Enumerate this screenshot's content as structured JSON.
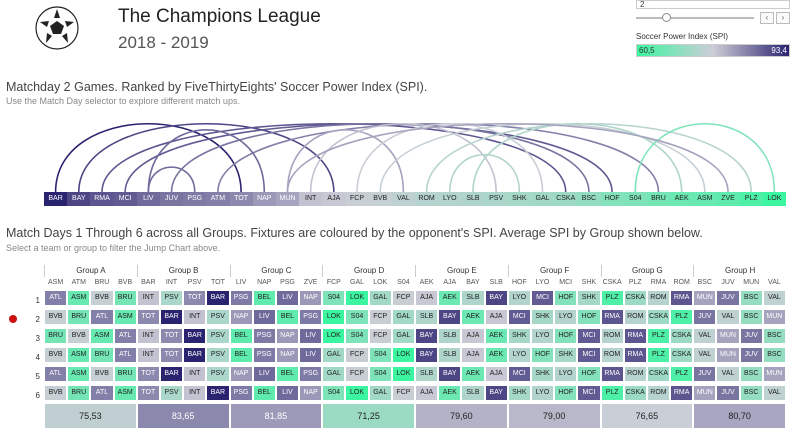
{
  "header": {
    "title": "The Champions League",
    "season": "2018 - 2019"
  },
  "matchday_filter": {
    "value": "2"
  },
  "spi_legend": {
    "title": "Soccer Power Index (SPI)",
    "min": "60,5",
    "max": "93,4",
    "min_num": 60.5,
    "max_num": 93.4,
    "low_color": "#3cf5a0",
    "high_color": "#2a2370"
  },
  "jump": {
    "heading": "Matchday 2 Games. Ranked by FiveThirtyEights' Soccer Power Index (SPI).",
    "note": "Use the Match Day selector to explore different match ups.",
    "teams": [
      {
        "n": "BAR",
        "s": 93.4
      },
      {
        "n": "BAY",
        "s": 90.0
      },
      {
        "n": "RMA",
        "s": 88.5
      },
      {
        "n": "MCI",
        "s": 88.0
      },
      {
        "n": "LIV",
        "s": 86.5
      },
      {
        "n": "JUV",
        "s": 85.5
      },
      {
        "n": "PSG",
        "s": 85.0
      },
      {
        "n": "ATM",
        "s": 84.5
      },
      {
        "n": "TOT",
        "s": 83.5
      },
      {
        "n": "NAP",
        "s": 82.0
      },
      {
        "n": "MUN",
        "s": 81.0
      },
      {
        "n": "INT",
        "s": 78.0
      },
      {
        "n": "AJA",
        "s": 77.5
      },
      {
        "n": "FCP",
        "s": 76.5
      },
      {
        "n": "BVB",
        "s": 76.0
      },
      {
        "n": "VAL",
        "s": 75.5
      },
      {
        "n": "ROM",
        "s": 74.5
      },
      {
        "n": "LYO",
        "s": 74.0
      },
      {
        "n": "SLB",
        "s": 73.5
      },
      {
        "n": "PSV",
        "s": 73.0
      },
      {
        "n": "SHK",
        "s": 72.5
      },
      {
        "n": "GAL",
        "s": 72.0
      },
      {
        "n": "CSKA",
        "s": 71.5
      },
      {
        "n": "BSC",
        "s": 70.5
      },
      {
        "n": "HOF",
        "s": 68.5
      },
      {
        "n": "S04",
        "s": 68.0
      },
      {
        "n": "BRU",
        "s": 67.0
      },
      {
        "n": "AEK",
        "s": 66.0
      },
      {
        "n": "ASM",
        "s": 65.5
      },
      {
        "n": "ZVE",
        "s": 64.5
      },
      {
        "n": "PLZ",
        "s": 62.5
      },
      {
        "n": "LOK",
        "s": 60.5
      }
    ],
    "matches": [
      [
        "BAR",
        "TOT"
      ],
      [
        "BAY",
        "AJA"
      ],
      [
        "RMA",
        "CSKA"
      ],
      [
        "MCI",
        "HOF"
      ],
      [
        "LIV",
        "PSG"
      ],
      [
        "JUV",
        "BSC"
      ],
      [
        "ATM",
        "BRU"
      ],
      [
        "NAP",
        "LIV"
      ],
      [
        "MUN",
        "VAL"
      ],
      [
        "INT",
        "PSV"
      ],
      [
        "FCP",
        "GAL"
      ],
      [
        "BVB",
        "ASM"
      ],
      [
        "ROM",
        "PLZ"
      ],
      [
        "LYO",
        "SHK"
      ],
      [
        "SLB",
        "AEK"
      ],
      [
        "S04",
        "LOK"
      ],
      [
        "ZVE",
        "MUN"
      ]
    ]
  },
  "groups_section": {
    "heading": "Match Days 1 Through 6 across all Groups. Fixtures are coloured by the opponent's SPI. Average SPI by Group shown below.",
    "note": "Select a team or group to filter the Jump Chart above."
  },
  "groups": [
    {
      "name": "Group A",
      "teams": [
        "ASM",
        "ATM",
        "BRU",
        "BVB"
      ],
      "rows": [
        [
          "ATL",
          "ASM",
          "BVB",
          "BRU"
        ],
        [
          "BVB",
          "BRU",
          "ATL",
          "ASM"
        ],
        [
          "BRU",
          "BVB",
          "ASM",
          "ATL"
        ],
        [
          "BVB",
          "ASM",
          "BRU",
          "ATL"
        ],
        [
          "ATL",
          "ASM",
          "BVB",
          "BRU"
        ],
        [
          "BVB",
          "BRU",
          "ATL",
          "ASM"
        ]
      ],
      "avg": "75,53",
      "avg_num": 75.53
    },
    {
      "name": "Group B",
      "teams": [
        "BAR",
        "INT",
        "PSV",
        "TOT"
      ],
      "rows": [
        [
          "INT",
          "PSV",
          "TOT",
          "BAR"
        ],
        [
          "TOT",
          "BAR",
          "INT",
          "PSV"
        ],
        [
          "INT",
          "TOT",
          "BAR",
          "PSV"
        ],
        [
          "INT",
          "TOT",
          "BAR",
          "PSV"
        ],
        [
          "TOT",
          "BAR",
          "INT",
          "PSV"
        ],
        [
          "TOT",
          "PSV",
          "INT",
          "BAR"
        ]
      ],
      "avg": "83,65",
      "avg_num": 83.65
    },
    {
      "name": "Group C",
      "teams": [
        "LIV",
        "NAP",
        "PSG",
        "ZVE"
      ],
      "rows": [
        [
          "PSG",
          "BEL",
          "LIV",
          "NAP"
        ],
        [
          "NAP",
          "LIV",
          "BEL",
          "PSG"
        ],
        [
          "BEL",
          "PSG",
          "NAP",
          "LIV"
        ],
        [
          "BEL",
          "PSG",
          "NAP",
          "LIV"
        ],
        [
          "NAP",
          "LIV",
          "BEL",
          "PSG"
        ],
        [
          "PSG",
          "BEL",
          "LIV",
          "NAP"
        ]
      ],
      "avg": "81,85",
      "avg_num": 81.85
    },
    {
      "name": "Group D",
      "teams": [
        "FCP",
        "GAL",
        "LOK",
        "S04"
      ],
      "rows": [
        [
          "S04",
          "LOK",
          "GAL",
          "FCP"
        ],
        [
          "LOK",
          "S04",
          "FCP",
          "GAL"
        ],
        [
          "LOK",
          "S04",
          "FCP",
          "GAL"
        ],
        [
          "GAL",
          "FCP",
          "S04",
          "LOK"
        ],
        [
          "GAL",
          "FCP",
          "S04",
          "LOK"
        ],
        [
          "S04",
          "LOK",
          "GAL",
          "FCP"
        ]
      ],
      "avg": "71,25",
      "avg_num": 71.25
    },
    {
      "name": "Group E",
      "teams": [
        "AEK",
        "AJA",
        "BAY",
        "SLB"
      ],
      "rows": [
        [
          "AJA",
          "AEK",
          "SLB",
          "BAY"
        ],
        [
          "SLB",
          "BAY",
          "AEK",
          "AJA"
        ],
        [
          "BAY",
          "SLB",
          "AJA",
          "AEK"
        ],
        [
          "BAY",
          "SLB",
          "AJA",
          "AEK"
        ],
        [
          "SLB",
          "BAY",
          "AEK",
          "AJA"
        ],
        [
          "AJA",
          "AEK",
          "SLB",
          "BAY"
        ]
      ],
      "avg": "79,60",
      "avg_num": 79.6
    },
    {
      "name": "Group F",
      "teams": [
        "HOF",
        "LYO",
        "MCI",
        "SHK"
      ],
      "rows": [
        [
          "LYO",
          "MCI",
          "HOF",
          "SHK"
        ],
        [
          "MCI",
          "SHK",
          "LYO",
          "HOF"
        ],
        [
          "SHK",
          "LYO",
          "HOF",
          "MCI"
        ],
        [
          "LYO",
          "HOF",
          "SHK",
          "MCI"
        ],
        [
          "MCI",
          "SHK",
          "LYO",
          "HOF"
        ],
        [
          "SHK",
          "LYO",
          "HOF",
          "MCI"
        ]
      ],
      "avg": "79,00",
      "avg_num": 79.0
    },
    {
      "name": "Group G",
      "teams": [
        "CSKA",
        "PLZ",
        "RMA",
        "ROM"
      ],
      "rows": [
        [
          "PLZ",
          "CSKA",
          "ROM",
          "RMA"
        ],
        [
          "RMA",
          "ROM",
          "CSKA",
          "PLZ"
        ],
        [
          "ROM",
          "RMA",
          "PLZ",
          "CSKA"
        ],
        [
          "ROM",
          "RMA",
          "PLZ",
          "CSKA"
        ],
        [
          "RMA",
          "ROM",
          "CSKA",
          "PLZ"
        ],
        [
          "PLZ",
          "CSKA",
          "ROM",
          "RMA"
        ]
      ],
      "avg": "76,65",
      "avg_num": 76.65
    },
    {
      "name": "Group H",
      "teams": [
        "BSC",
        "JUV",
        "MUN",
        "VAL"
      ],
      "rows": [
        [
          "MUN",
          "JUV",
          "BSC",
          "VAL"
        ],
        [
          "JUV",
          "VAL",
          "BSC",
          "MUN"
        ],
        [
          "VAL",
          "MUN",
          "JUV",
          "BSC"
        ],
        [
          "VAL",
          "MUN",
          "JUV",
          "BSC"
        ],
        [
          "JUV",
          "VAL",
          "BSC",
          "MUN"
        ],
        [
          "MUN",
          "JUV",
          "BSC",
          "VAL"
        ]
      ],
      "avg": "80,70",
      "avg_num": 80.7
    }
  ],
  "team_spi": {
    "BAR": 93.4,
    "BAY": 90.0,
    "RMA": 88.5,
    "MCI": 88.0,
    "LIV": 86.5,
    "JUV": 85.5,
    "PSG": 85.0,
    "ATM": 84.5,
    "ATL": 84.5,
    "TOT": 83.5,
    "NAP": 82.0,
    "MUN": 81.0,
    "INT": 78.0,
    "AJA": 77.5,
    "FCP": 76.5,
    "BVB": 76.0,
    "VAL": 75.5,
    "ROM": 74.5,
    "LYO": 74.0,
    "SLB": 73.5,
    "PSV": 73.0,
    "SHK": 72.5,
    "GAL": 72.0,
    "CSKA": 71.5,
    "BSC": 70.5,
    "HOF": 68.5,
    "S04": 68.0,
    "BRU": 67.0,
    "AEK": 66.0,
    "ASM": 65.5,
    "ZVE": 64.5,
    "BEL": 64.5,
    "PLZ": 62.5,
    "LOK": 60.5
  },
  "row_labels": [
    "1",
    "2",
    "3",
    "4",
    "5",
    "6"
  ]
}
